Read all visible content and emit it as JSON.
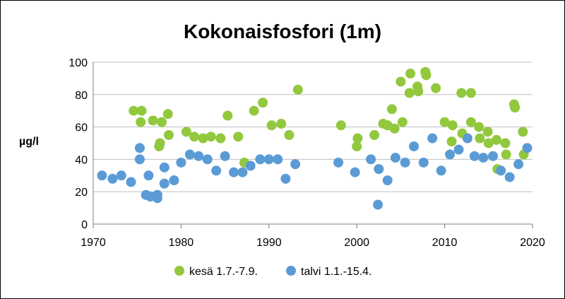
{
  "chart_data": {
    "type": "scatter",
    "title": "Kokonaisfosfori (1m)",
    "ylabel": "µg/l",
    "xlabel": "",
    "xlim": [
      1970,
      2020
    ],
    "ylim": [
      0,
      100
    ],
    "xticks": [
      1970,
      1980,
      1990,
      2000,
      2010,
      2020
    ],
    "yticks": [
      0,
      20,
      40,
      60,
      80,
      100
    ],
    "x_tick_labels": [
      "1970",
      "1980",
      "1990",
      "2000",
      "2010",
      "2020"
    ],
    "y_tick_labels": [
      "0",
      "20",
      "40",
      "60",
      "80",
      "100"
    ],
    "grid": "horizontal",
    "legend_position": "bottom",
    "series": [
      {
        "name": "kesä 1.7.-7.9.",
        "color": "#92c83e",
        "points": [
          [
            1974.6,
            70
          ],
          [
            1975.5,
            70
          ],
          [
            1975.4,
            63
          ],
          [
            1976.8,
            64
          ],
          [
            1977.6,
            50
          ],
          [
            1977.5,
            48
          ],
          [
            1977.8,
            63
          ],
          [
            1978.5,
            68
          ],
          [
            1978.6,
            55
          ],
          [
            1980.6,
            57
          ],
          [
            1981.5,
            54
          ],
          [
            1982.5,
            53
          ],
          [
            1983.4,
            54
          ],
          [
            1984.5,
            53
          ],
          [
            1985.3,
            67
          ],
          [
            1986.5,
            54
          ],
          [
            1987.2,
            38
          ],
          [
            1988.3,
            70
          ],
          [
            1989.3,
            75
          ],
          [
            1990.3,
            61
          ],
          [
            1991.4,
            62
          ],
          [
            1992.3,
            55
          ],
          [
            1993.3,
            83
          ],
          [
            1998.2,
            61
          ],
          [
            2000.1,
            53
          ],
          [
            2000.0,
            48
          ],
          [
            2002.0,
            55
          ],
          [
            2003.0,
            62
          ],
          [
            2003.5,
            61
          ],
          [
            2004.0,
            71
          ],
          [
            2004.3,
            59
          ],
          [
            2005.0,
            88
          ],
          [
            2005.2,
            63
          ],
          [
            2006.1,
            93
          ],
          [
            2006.0,
            81
          ],
          [
            2006.9,
            85
          ],
          [
            2007.0,
            82
          ],
          [
            2007.8,
            94
          ],
          [
            2007.9,
            92
          ],
          [
            2009.0,
            84
          ],
          [
            2010.0,
            63
          ],
          [
            2010.9,
            61
          ],
          [
            2010.8,
            51
          ],
          [
            2011.9,
            81
          ],
          [
            2012.0,
            56
          ],
          [
            2013.0,
            81
          ],
          [
            2013.0,
            63
          ],
          [
            2013.9,
            60
          ],
          [
            2014.0,
            53
          ],
          [
            2014.9,
            57
          ],
          [
            2015.0,
            50
          ],
          [
            2015.9,
            52
          ],
          [
            2016.0,
            34
          ],
          [
            2016.9,
            50
          ],
          [
            2017.0,
            43
          ],
          [
            2017.9,
            74
          ],
          [
            2018.0,
            72
          ],
          [
            2018.9,
            57
          ],
          [
            2019.0,
            43
          ]
        ]
      },
      {
        "name": "talvi 1.1.-15.4.",
        "color": "#5b9bd5",
        "points": [
          [
            1971.0,
            30
          ],
          [
            1972.2,
            28
          ],
          [
            1973.2,
            30
          ],
          [
            1974.3,
            26
          ],
          [
            1975.3,
            40
          ],
          [
            1975.3,
            47
          ],
          [
            1976.0,
            18
          ],
          [
            1976.3,
            30
          ],
          [
            1976.5,
            17
          ],
          [
            1977.3,
            18
          ],
          [
            1977.3,
            16
          ],
          [
            1978.1,
            25
          ],
          [
            1978.1,
            35
          ],
          [
            1979.2,
            27
          ],
          [
            1980.0,
            38
          ],
          [
            1981.0,
            43
          ],
          [
            1982.0,
            42
          ],
          [
            1983.0,
            40
          ],
          [
            1984.0,
            33
          ],
          [
            1985.0,
            42
          ],
          [
            1986.0,
            32
          ],
          [
            1987.0,
            32
          ],
          [
            1987.9,
            36
          ],
          [
            1989.0,
            40
          ],
          [
            1990.0,
            40
          ],
          [
            1991.0,
            40
          ],
          [
            1991.9,
            28
          ],
          [
            1993.0,
            37
          ],
          [
            1997.9,
            38
          ],
          [
            1999.8,
            32
          ],
          [
            2001.6,
            40
          ],
          [
            2002.4,
            12
          ],
          [
            2002.5,
            34
          ],
          [
            2003.5,
            27
          ],
          [
            2004.4,
            41
          ],
          [
            2005.5,
            38
          ],
          [
            2006.5,
            48
          ],
          [
            2007.6,
            38
          ],
          [
            2008.6,
            53
          ],
          [
            2009.6,
            33
          ],
          [
            2010.6,
            43
          ],
          [
            2011.6,
            46
          ],
          [
            2012.6,
            53
          ],
          [
            2013.4,
            42
          ],
          [
            2014.4,
            41
          ],
          [
            2015.5,
            42
          ],
          [
            2016.4,
            33
          ],
          [
            2017.4,
            29
          ],
          [
            2018.4,
            37
          ],
          [
            2019.4,
            47
          ]
        ]
      }
    ]
  }
}
